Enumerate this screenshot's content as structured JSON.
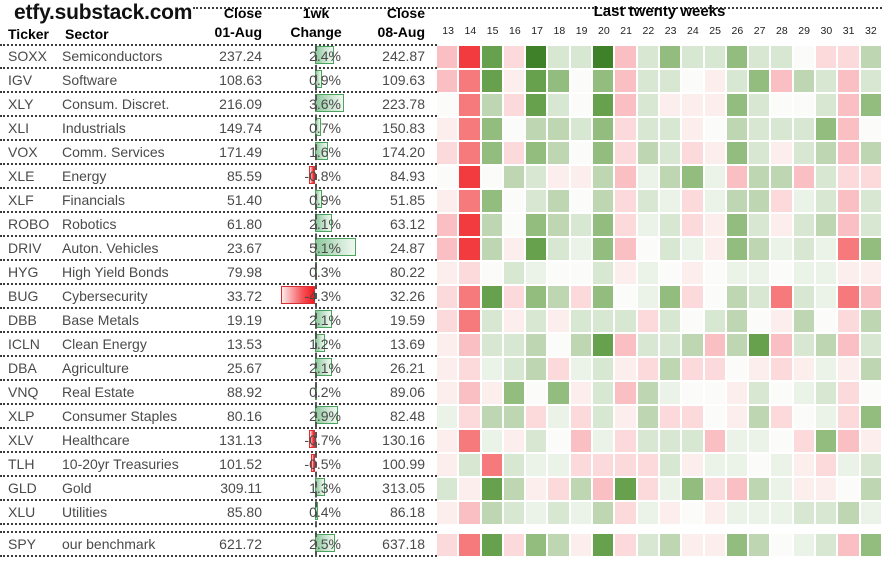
{
  "source": "etfy.substack.com",
  "columns": {
    "ticker": "Ticker",
    "sector": "Sector",
    "close_prev_line1": "Close",
    "close_prev_line2": "01-Aug",
    "change_line1": "1wk",
    "change_line2": "Change",
    "close_cur_line1": "Close",
    "close_cur_line2": "08-Aug"
  },
  "heatmap": {
    "title": "Last twenty weeks",
    "weeks": [
      "13",
      "14",
      "15",
      "16",
      "17",
      "18",
      "19",
      "20",
      "21",
      "22",
      "23",
      "24",
      "25",
      "26",
      "27",
      "28",
      "29",
      "30",
      "31",
      "32"
    ],
    "palette": {
      "r4": "#f23b3f",
      "r3": "#f6797c",
      "r2": "#f9bfc2",
      "r1": "#fcdadc",
      "r0": "#fdeeee",
      "w": "#fbfcfa",
      "g0": "#ebf2e7",
      "g1": "#d8e7d1",
      "g2": "#bed7b2",
      "g3": "#93bd7f",
      "g4": "#68a14e",
      "g5": "#3f8128"
    }
  },
  "chart_data": {
    "type": "heatmap",
    "title": "etfy.substack.com",
    "heatmap_header": "Last twenty weeks",
    "week_numbers": [
      13,
      14,
      15,
      16,
      17,
      18,
      19,
      20,
      21,
      22,
      23,
      24,
      25,
      26,
      27,
      28,
      29,
      30,
      31,
      32
    ],
    "rows": [
      {
        "ticker": "SOXX",
        "sector": "Semiconductors",
        "close_01_aug": "237.24",
        "change_1wk_pct": 2.4,
        "change_label": "2.4%",
        "close_08_aug": "242.87",
        "weekly_heat": [
          "r2",
          "r4",
          "g4",
          "r1",
          "g5",
          "g1",
          "g1",
          "g5",
          "r2",
          "g1",
          "g3",
          "g1",
          "g1",
          "g3",
          "g1",
          "g1",
          "w",
          "r1",
          "r1",
          "g2"
        ]
      },
      {
        "ticker": "IGV",
        "sector": "Software",
        "close_01_aug": "108.63",
        "change_1wk_pct": 0.9,
        "change_label": "0.9%",
        "close_08_aug": "109.63",
        "weekly_heat": [
          "r2",
          "r3",
          "g4",
          "r0",
          "g4",
          "g3",
          "w",
          "g3",
          "r2",
          "g1",
          "g1",
          "w",
          "r0",
          "g1",
          "g3",
          "r2",
          "g2",
          "g1",
          "r2",
          "g1"
        ]
      },
      {
        "ticker": "XLY",
        "sector": "Consum. Discret.",
        "close_01_aug": "216.09",
        "change_1wk_pct": 3.6,
        "change_label": "3.6%",
        "close_08_aug": "223.78",
        "weekly_heat": [
          "w",
          "r3",
          "g2",
          "r1",
          "g4",
          "g1",
          "w",
          "g4",
          "r2",
          "g1",
          "r0",
          "r0",
          "r0",
          "g3",
          "g1",
          "w",
          "w",
          "g1",
          "r2",
          "g3"
        ]
      },
      {
        "ticker": "XLI",
        "sector": "Industrials",
        "close_01_aug": "149.74",
        "change_1wk_pct": 0.7,
        "change_label": "0.7%",
        "close_08_aug": "150.83",
        "weekly_heat": [
          "r0",
          "r3",
          "g3",
          "w",
          "g2",
          "g2",
          "g1",
          "g3",
          "r1",
          "g1",
          "g1",
          "r0",
          "w",
          "g2",
          "g1",
          "g1",
          "g1",
          "g3",
          "r2",
          "w"
        ]
      },
      {
        "ticker": "VOX",
        "sector": "Comm. Services",
        "close_01_aug": "171.49",
        "change_1wk_pct": 1.6,
        "change_label": "1.6%",
        "close_08_aug": "174.20",
        "weekly_heat": [
          "r1",
          "r3",
          "g3",
          "r1",
          "g3",
          "g2",
          "w",
          "g3",
          "r1",
          "g2",
          "g1",
          "r1",
          "r0",
          "g3",
          "g1",
          "r0",
          "g1",
          "g2",
          "r2",
          "g2"
        ]
      },
      {
        "ticker": "XLE",
        "sector": "Energy",
        "close_01_aug": "85.59",
        "change_1wk_pct": -0.8,
        "change_label": "-0.8%",
        "close_08_aug": "84.93",
        "weekly_heat": [
          "w",
          "r4",
          "w",
          "g2",
          "g1",
          "r0",
          "r0",
          "g2",
          "r2",
          "g0",
          "g2",
          "g3",
          "g0",
          "r2",
          "g2",
          "g2",
          "r2",
          "g1",
          "r1",
          "r1"
        ]
      },
      {
        "ticker": "XLF",
        "sector": "Financials",
        "close_01_aug": "51.40",
        "change_1wk_pct": 0.9,
        "change_label": "0.9%",
        "close_08_aug": "51.85",
        "weekly_heat": [
          "r0",
          "r3",
          "g3",
          "w",
          "g1",
          "g2",
          "w",
          "g2",
          "r1",
          "g1",
          "g0",
          "r1",
          "g0",
          "g2",
          "g2",
          "r1",
          "g0",
          "g1",
          "r2",
          "g1"
        ]
      },
      {
        "ticker": "ROBO",
        "sector": "Robotics",
        "close_01_aug": "61.80",
        "change_1wk_pct": 2.1,
        "change_label": "2.1%",
        "close_08_aug": "63.12",
        "weekly_heat": [
          "r2",
          "r4",
          "g2",
          "w",
          "g3",
          "g2",
          "g1",
          "g3",
          "r1",
          "g0",
          "g1",
          "r1",
          "r0",
          "g3",
          "g1",
          "r0",
          "g1",
          "g2",
          "r2",
          "g1"
        ]
      },
      {
        "ticker": "DRIV",
        "sector": "Auton. Vehicles",
        "close_01_aug": "23.67",
        "change_1wk_pct": 5.1,
        "change_label": "5.1%",
        "close_08_aug": "24.87",
        "weekly_heat": [
          "r2",
          "r4",
          "g2",
          "r0",
          "g4",
          "g1",
          "g0",
          "g3",
          "r2",
          "w",
          "g1",
          "g0",
          "r0",
          "g3",
          "g2",
          "g0",
          "g1",
          "g0",
          "r3",
          "g3"
        ]
      },
      {
        "ticker": "HYG",
        "sector": "High Yield Bonds",
        "close_01_aug": "79.98",
        "change_1wk_pct": 0.3,
        "change_label": "0.3%",
        "close_08_aug": "80.22",
        "weekly_heat": [
          "r0",
          "r1",
          "w",
          "g1",
          "g0",
          "w",
          "w",
          "g1",
          "r0",
          "g0",
          "w",
          "r0",
          "w",
          "g0",
          "g0",
          "w",
          "g0",
          "g0",
          "r0",
          "r0"
        ]
      },
      {
        "ticker": "BUG",
        "sector": "Cybersecurity",
        "close_01_aug": "33.72",
        "change_1wk_pct": -4.3,
        "change_label": "-4.3%",
        "close_08_aug": "32.26",
        "weekly_heat": [
          "r1",
          "r3",
          "g4",
          "r1",
          "g3",
          "g2",
          "r1",
          "g3",
          "w",
          "g0",
          "g3",
          "r1",
          "w",
          "g2",
          "g1",
          "r3",
          "g1",
          "g0",
          "r3",
          "r2"
        ]
      },
      {
        "ticker": "DBB",
        "sector": "Base Metals",
        "close_01_aug": "19.19",
        "change_1wk_pct": 2.1,
        "change_label": "2.1%",
        "close_08_aug": "19.59",
        "weekly_heat": [
          "r1",
          "r3",
          "g1",
          "r0",
          "g1",
          "r0",
          "g1",
          "g1",
          "g1",
          "r1",
          "g1",
          "w",
          "g1",
          "g2",
          "w",
          "r0",
          "g2",
          "w",
          "r1",
          "g2"
        ]
      },
      {
        "ticker": "ICLN",
        "sector": "Clean Energy",
        "close_01_aug": "13.53",
        "change_1wk_pct": 1.2,
        "change_label": "1.2%",
        "close_08_aug": "13.69",
        "weekly_heat": [
          "r0",
          "r2",
          "g1",
          "g1",
          "g2",
          "w",
          "g2",
          "g4",
          "r2",
          "g1",
          "g1",
          "g2",
          "r2",
          "g2",
          "g4",
          "r2",
          "g1",
          "g2",
          "r2",
          "g1"
        ]
      },
      {
        "ticker": "DBA",
        "sector": "Agriculture",
        "close_01_aug": "25.67",
        "change_1wk_pct": 2.1,
        "change_label": "2.1%",
        "close_08_aug": "26.21",
        "weekly_heat": [
          "r0",
          "r1",
          "g0",
          "g1",
          "g2",
          "r1",
          "g0",
          "g1",
          "r0",
          "r1",
          "g2",
          "r1",
          "r1",
          "w",
          "r0",
          "r1",
          "r0",
          "g0",
          "r0",
          "g2"
        ]
      },
      {
        "ticker": "VNQ",
        "sector": "Real Estate",
        "close_01_aug": "88.92",
        "change_1wk_pct": 0.2,
        "change_label": "0.2%",
        "close_08_aug": "89.06",
        "weekly_heat": [
          "r0",
          "r2",
          "r0",
          "g3",
          "w",
          "g3",
          "r0",
          "g1",
          "r2",
          "g2",
          "g0",
          "w",
          "w",
          "r0",
          "g1",
          "w",
          "g0",
          "g1",
          "r1",
          "w"
        ]
      },
      {
        "ticker": "XLP",
        "sector": "Consumer Staples",
        "close_01_aug": "80.16",
        "change_1wk_pct": 2.9,
        "change_label": "2.9%",
        "close_08_aug": "82.48",
        "weekly_heat": [
          "g0",
          "r1",
          "g2",
          "g2",
          "r1",
          "g0",
          "r1",
          "g1",
          "r0",
          "g2",
          "r1",
          "r1",
          "w",
          "r0",
          "g2",
          "r1",
          "w",
          "g0",
          "r1",
          "g3"
        ]
      },
      {
        "ticker": "XLV",
        "sector": "Healthcare",
        "close_01_aug": "131.13",
        "change_1wk_pct": -0.7,
        "change_label": "-0.7%",
        "close_08_aug": "130.16",
        "weekly_heat": [
          "r0",
          "r3",
          "g0",
          "r0",
          "g1",
          "w",
          "r2",
          "g0",
          "r1",
          "g1",
          "g1",
          "g1",
          "r2",
          "g0",
          "g0",
          "w",
          "r1",
          "g3",
          "r2",
          "r0"
        ]
      },
      {
        "ticker": "TLH",
        "sector": "10-20yr Treasuries",
        "close_01_aug": "101.52",
        "change_1wk_pct": -0.5,
        "change_label": "-0.5%",
        "close_08_aug": "100.99",
        "weekly_heat": [
          "r0",
          "g1",
          "r3",
          "g1",
          "g0",
          "g0",
          "r1",
          "r1",
          "r1",
          "r1",
          "g1",
          "r0",
          "g0",
          "g0",
          "w",
          "g0",
          "r0",
          "r1",
          "g0",
          "g1"
        ]
      },
      {
        "ticker": "GLD",
        "sector": "Gold",
        "close_01_aug": "309.11",
        "change_1wk_pct": 1.3,
        "change_label": "1.3%",
        "close_08_aug": "313.05",
        "weekly_heat": [
          "g1",
          "r0",
          "g4",
          "g2",
          "r0",
          "r1",
          "g2",
          "r2",
          "g4",
          "r1",
          "g0",
          "g3",
          "r1",
          "r2",
          "g2",
          "g0",
          "r0",
          "r0",
          "w",
          "g2"
        ]
      },
      {
        "ticker": "XLU",
        "sector": "Utilities",
        "close_01_aug": "85.80",
        "change_1wk_pct": 0.4,
        "change_label": "0.4%",
        "close_08_aug": "86.18",
        "weekly_heat": [
          "r0",
          "r2",
          "g2",
          "g1",
          "g0",
          "g1",
          "g0",
          "g2",
          "r1",
          "g0",
          "r0",
          "w",
          "r0",
          "g0",
          "g0",
          "g0",
          "g1",
          "g1",
          "g2",
          "g0"
        ]
      },
      {
        "ticker": "SPY",
        "sector": "our benchmark",
        "close_01_aug": "621.72",
        "change_1wk_pct": 2.5,
        "change_label": "2.5%",
        "close_08_aug": "637.18",
        "gap_before": true,
        "weekly_heat": [
          "r1",
          "r3",
          "g4",
          "r1",
          "g3",
          "g2",
          "r0",
          "g4",
          "r1",
          "g1",
          "g2",
          "r0",
          "r0",
          "g3",
          "g2",
          "w",
          "g0",
          "g1",
          "r2",
          "g3"
        ]
      }
    ]
  },
  "bar_colors": {
    "positive_border": "#4aa45e",
    "positive_fill": "#8dc89c",
    "negative_border": "#d92f32",
    "negative_fill": "#f2181d"
  }
}
